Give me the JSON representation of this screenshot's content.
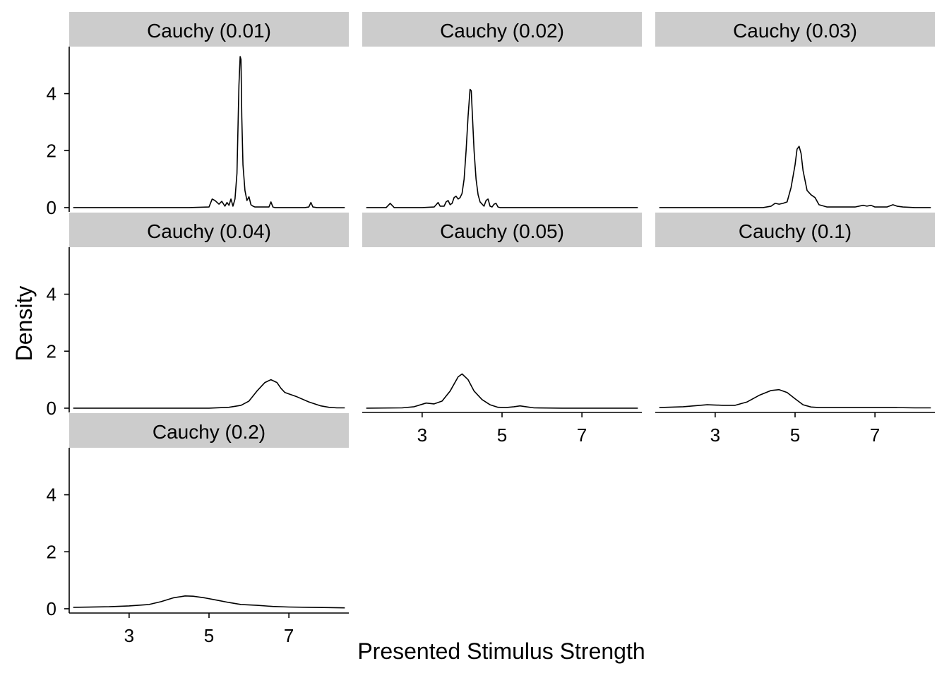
{
  "chart_data": {
    "type": "line",
    "subtype": "faceted density plot",
    "xlabel": "Presented Stimulus Strength",
    "ylabel": "Density",
    "xlim": [
      1.5,
      8.5
    ],
    "ylim": [
      -0.15,
      5.65
    ],
    "x_ticks": [
      3,
      5,
      7
    ],
    "y_ticks": [
      0,
      2,
      4
    ],
    "x_tick_labels": [
      "3",
      "5",
      "7"
    ],
    "y_tick_labels": [
      "0",
      "2",
      "4"
    ],
    "grid": false,
    "legend": "none",
    "facets": [
      {
        "label": "Cauchy (0.01)",
        "x": [
          1.6,
          2.5,
          3.5,
          4.5,
          5.0,
          5.08,
          5.15,
          5.25,
          5.32,
          5.4,
          5.45,
          5.5,
          5.55,
          5.6,
          5.65,
          5.7,
          5.75,
          5.78,
          5.8,
          5.82,
          5.85,
          5.9,
          5.95,
          6.0,
          6.05,
          6.1,
          6.15,
          6.3,
          6.5,
          6.55,
          6.6,
          6.65,
          6.8,
          7.0,
          7.4,
          7.5,
          7.55,
          7.6,
          7.7,
          8.0,
          8.4
        ],
        "y": [
          0,
          0,
          0,
          0,
          0.02,
          0.3,
          0.25,
          0.12,
          0.22,
          0.05,
          0.18,
          0.08,
          0.3,
          0.05,
          0.3,
          1.2,
          4.3,
          5.3,
          5.2,
          3.2,
          1.5,
          0.6,
          0.25,
          0.38,
          0.1,
          0.05,
          0.02,
          0.02,
          0.02,
          0.2,
          0.02,
          0,
          0,
          0,
          0,
          0.02,
          0.18,
          0.02,
          0,
          0,
          0
        ]
      },
      {
        "label": "Cauchy (0.02)",
        "x": [
          1.6,
          2.1,
          2.2,
          2.3,
          2.5,
          3.0,
          3.3,
          3.35,
          3.4,
          3.45,
          3.55,
          3.6,
          3.65,
          3.7,
          3.75,
          3.8,
          3.85,
          3.9,
          3.95,
          4.0,
          4.05,
          4.1,
          4.15,
          4.2,
          4.23,
          4.26,
          4.3,
          4.35,
          4.4,
          4.45,
          4.55,
          4.6,
          4.65,
          4.7,
          4.75,
          4.8,
          4.85,
          4.9,
          4.95,
          5.0,
          5.5,
          6.5,
          7.5,
          8.4
        ],
        "y": [
          0,
          0,
          0.15,
          0,
          0,
          0,
          0.02,
          0.1,
          0.18,
          0.05,
          0.05,
          0.2,
          0.25,
          0.1,
          0.15,
          0.35,
          0.4,
          0.3,
          0.35,
          0.5,
          1.0,
          2.0,
          3.2,
          4.15,
          4.1,
          3.2,
          2.0,
          1.0,
          0.45,
          0.2,
          0.05,
          0.25,
          0.3,
          0.05,
          0.02,
          0.12,
          0.15,
          0.02,
          0,
          0,
          0,
          0,
          0,
          0
        ]
      },
      {
        "label": "Cauchy (0.03)",
        "x": [
          1.6,
          2.5,
          3.5,
          4.2,
          4.4,
          4.5,
          4.6,
          4.7,
          4.8,
          4.9,
          5.0,
          5.05,
          5.1,
          5.15,
          5.2,
          5.3,
          5.4,
          5.5,
          5.6,
          5.8,
          6.0,
          6.5,
          6.7,
          6.8,
          6.9,
          7.0,
          7.3,
          7.45,
          7.55,
          7.7,
          8.0,
          8.4
        ],
        "y": [
          0,
          0,
          0,
          0,
          0.05,
          0.15,
          0.12,
          0.15,
          0.2,
          0.7,
          1.5,
          2.05,
          2.15,
          1.9,
          1.3,
          0.6,
          0.45,
          0.35,
          0.1,
          0.02,
          0.02,
          0.02,
          0.08,
          0.05,
          0.08,
          0.02,
          0.02,
          0.1,
          0.05,
          0.02,
          0,
          0
        ]
      },
      {
        "label": "Cauchy (0.04)",
        "x": [
          1.6,
          2.5,
          3.5,
          4.5,
          5.0,
          5.5,
          5.8,
          6.0,
          6.2,
          6.4,
          6.55,
          6.7,
          6.8,
          6.9,
          7.0,
          7.2,
          7.5,
          7.8,
          8.0,
          8.2,
          8.4
        ],
        "y": [
          0,
          0,
          0,
          0,
          0,
          0.03,
          0.1,
          0.25,
          0.6,
          0.9,
          1.0,
          0.9,
          0.7,
          0.55,
          0.5,
          0.4,
          0.22,
          0.08,
          0.03,
          0.01,
          0.01
        ]
      },
      {
        "label": "Cauchy (0.05)",
        "x": [
          1.6,
          2.5,
          2.8,
          3.1,
          3.3,
          3.5,
          3.7,
          3.9,
          4.0,
          4.15,
          4.3,
          4.5,
          4.7,
          4.9,
          5.1,
          5.3,
          5.45,
          5.6,
          5.8,
          6.5,
          7.5,
          8.4
        ],
        "y": [
          0,
          0.01,
          0.05,
          0.18,
          0.15,
          0.25,
          0.6,
          1.1,
          1.2,
          1.0,
          0.6,
          0.3,
          0.12,
          0.03,
          0.02,
          0.05,
          0.08,
          0.05,
          0.01,
          0,
          0,
          0
        ]
      },
      {
        "label": "Cauchy (0.1)",
        "x": [
          1.6,
          2.2,
          2.8,
          3.2,
          3.5,
          3.8,
          4.1,
          4.4,
          4.6,
          4.8,
          5.0,
          5.2,
          5.4,
          5.6,
          6.0,
          6.5,
          7.0,
          7.5,
          8.0,
          8.4
        ],
        "y": [
          0.02,
          0.05,
          0.12,
          0.1,
          0.1,
          0.22,
          0.45,
          0.62,
          0.65,
          0.55,
          0.33,
          0.12,
          0.04,
          0.02,
          0.02,
          0.02,
          0.02,
          0.02,
          0.01,
          0.01
        ]
      },
      {
        "label": "Cauchy (0.2)",
        "x": [
          1.6,
          2.5,
          3.0,
          3.5,
          3.8,
          4.1,
          4.4,
          4.6,
          4.9,
          5.2,
          5.5,
          5.8,
          6.2,
          6.6,
          7.0,
          7.5,
          8.0,
          8.4
        ],
        "y": [
          0.05,
          0.07,
          0.1,
          0.15,
          0.25,
          0.38,
          0.45,
          0.44,
          0.38,
          0.3,
          0.22,
          0.15,
          0.12,
          0.08,
          0.06,
          0.05,
          0.04,
          0.03
        ]
      }
    ]
  }
}
